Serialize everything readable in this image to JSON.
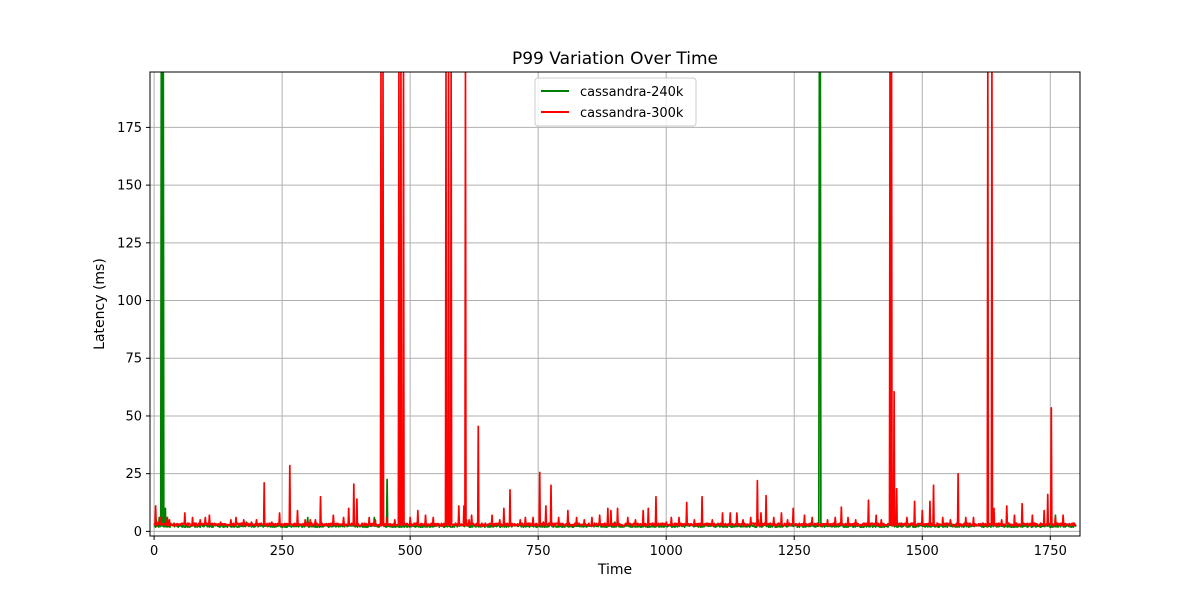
{
  "chart_data": {
    "type": "line",
    "title": "P99 Variation Over Time",
    "xlabel": "Time",
    "ylabel": "Latency (ms)",
    "xlim": [
      -8,
      1808
    ],
    "ylim": [
      -2,
      199
    ],
    "xticks": [
      0,
      250,
      500,
      750,
      1000,
      1250,
      1500,
      1750
    ],
    "yticks": [
      0,
      25,
      50,
      75,
      100,
      125,
      150,
      175
    ],
    "grid": true,
    "legend_position": "upper center",
    "x_max": 1800,
    "series": [
      {
        "name": "cassandra-240k",
        "color": "#008000",
        "baseline": 2.2,
        "spikes": [
          [
            4,
            5
          ],
          [
            10,
            6
          ],
          [
            14,
            199
          ],
          [
            15,
            199
          ],
          [
            17,
            199
          ],
          [
            18,
            199
          ],
          [
            22,
            10
          ],
          [
            100,
            4
          ],
          [
            180,
            4
          ],
          [
            300,
            6
          ],
          [
            430,
            6
          ],
          [
            455,
            22.5
          ],
          [
            610,
            5
          ],
          [
            760,
            4
          ],
          [
            900,
            4
          ],
          [
            1180,
            5
          ],
          [
            1299,
            199
          ],
          [
            1300,
            199
          ],
          [
            1301,
            199
          ],
          [
            1760,
            7
          ]
        ]
      },
      {
        "name": "cassandra-300k",
        "color": "#ff0000",
        "baseline": 2.8,
        "spikes": [
          [
            3,
            11
          ],
          [
            8,
            4
          ],
          [
            12,
            6
          ],
          [
            26,
            6
          ],
          [
            30,
            5
          ],
          [
            48,
            3
          ],
          [
            60,
            8
          ],
          [
            75,
            6
          ],
          [
            90,
            5
          ],
          [
            100,
            6
          ],
          [
            108,
            7
          ],
          [
            130,
            4
          ],
          [
            150,
            5
          ],
          [
            160,
            6
          ],
          [
            175,
            5
          ],
          [
            190,
            4
          ],
          [
            200,
            5
          ],
          [
            215,
            21
          ],
          [
            230,
            4
          ],
          [
            245,
            8
          ],
          [
            265,
            28.5
          ],
          [
            280,
            9
          ],
          [
            295,
            5
          ],
          [
            305,
            5
          ],
          [
            315,
            5
          ],
          [
            325,
            15
          ],
          [
            350,
            7
          ],
          [
            370,
            6
          ],
          [
            380,
            10
          ],
          [
            390,
            20.5
          ],
          [
            396,
            14
          ],
          [
            420,
            6
          ],
          [
            432,
            5
          ],
          [
            443,
            199
          ],
          [
            447,
            199
          ],
          [
            455,
            6
          ],
          [
            470,
            5
          ],
          [
            478,
            199
          ],
          [
            482,
            199
          ],
          [
            487,
            199
          ],
          [
            500,
            6
          ],
          [
            515,
            9
          ],
          [
            530,
            7
          ],
          [
            545,
            6
          ],
          [
            570,
            199
          ],
          [
            575,
            199
          ],
          [
            580,
            199
          ],
          [
            595,
            11
          ],
          [
            605,
            11
          ],
          [
            608,
            199
          ],
          [
            615,
            5
          ],
          [
            620,
            7
          ],
          [
            633,
            45.5
          ],
          [
            660,
            7
          ],
          [
            675,
            5
          ],
          [
            683,
            10
          ],
          [
            695,
            18
          ],
          [
            715,
            5
          ],
          [
            725,
            6
          ],
          [
            740,
            6
          ],
          [
            753,
            25.5
          ],
          [
            765,
            11
          ],
          [
            775,
            20
          ],
          [
            790,
            6
          ],
          [
            808,
            9
          ],
          [
            825,
            6
          ],
          [
            840,
            5
          ],
          [
            855,
            6
          ],
          [
            870,
            7
          ],
          [
            886,
            10
          ],
          [
            892,
            9
          ],
          [
            905,
            10
          ],
          [
            925,
            6
          ],
          [
            940,
            5
          ],
          [
            955,
            9
          ],
          [
            965,
            10
          ],
          [
            980,
            15
          ],
          [
            1000,
            4
          ],
          [
            1010,
            6
          ],
          [
            1025,
            6
          ],
          [
            1040,
            12.5
          ],
          [
            1055,
            5
          ],
          [
            1070,
            15
          ],
          [
            1090,
            5
          ],
          [
            1110,
            8
          ],
          [
            1125,
            8
          ],
          [
            1138,
            8
          ],
          [
            1150,
            5
          ],
          [
            1165,
            6
          ],
          [
            1178,
            22
          ],
          [
            1185,
            8
          ],
          [
            1195,
            15.5
          ],
          [
            1210,
            6
          ],
          [
            1225,
            8
          ],
          [
            1237,
            5
          ],
          [
            1248,
            10
          ],
          [
            1270,
            7
          ],
          [
            1285,
            6
          ],
          [
            1315,
            5
          ],
          [
            1330,
            6
          ],
          [
            1342,
            10.5
          ],
          [
            1355,
            6
          ],
          [
            1370,
            5
          ],
          [
            1395,
            13.5
          ],
          [
            1410,
            7
          ],
          [
            1420,
            5
          ],
          [
            1437,
            199
          ],
          [
            1440,
            199
          ],
          [
            1445,
            60.5
          ],
          [
            1450,
            18.5
          ],
          [
            1470,
            6
          ],
          [
            1485,
            13
          ],
          [
            1500,
            9
          ],
          [
            1515,
            13
          ],
          [
            1522,
            20
          ],
          [
            1540,
            6
          ],
          [
            1555,
            5
          ],
          [
            1570,
            25
          ],
          [
            1585,
            6
          ],
          [
            1600,
            6
          ],
          [
            1628,
            199
          ],
          [
            1636,
            199
          ],
          [
            1640,
            10
          ],
          [
            1655,
            5
          ],
          [
            1665,
            11
          ],
          [
            1680,
            7
          ],
          [
            1695,
            12
          ],
          [
            1715,
            7
          ],
          [
            1738,
            9
          ],
          [
            1745,
            16
          ],
          [
            1752,
            53.5
          ],
          [
            1760,
            6
          ],
          [
            1775,
            7
          ],
          [
            1790,
            3
          ]
        ]
      }
    ]
  }
}
